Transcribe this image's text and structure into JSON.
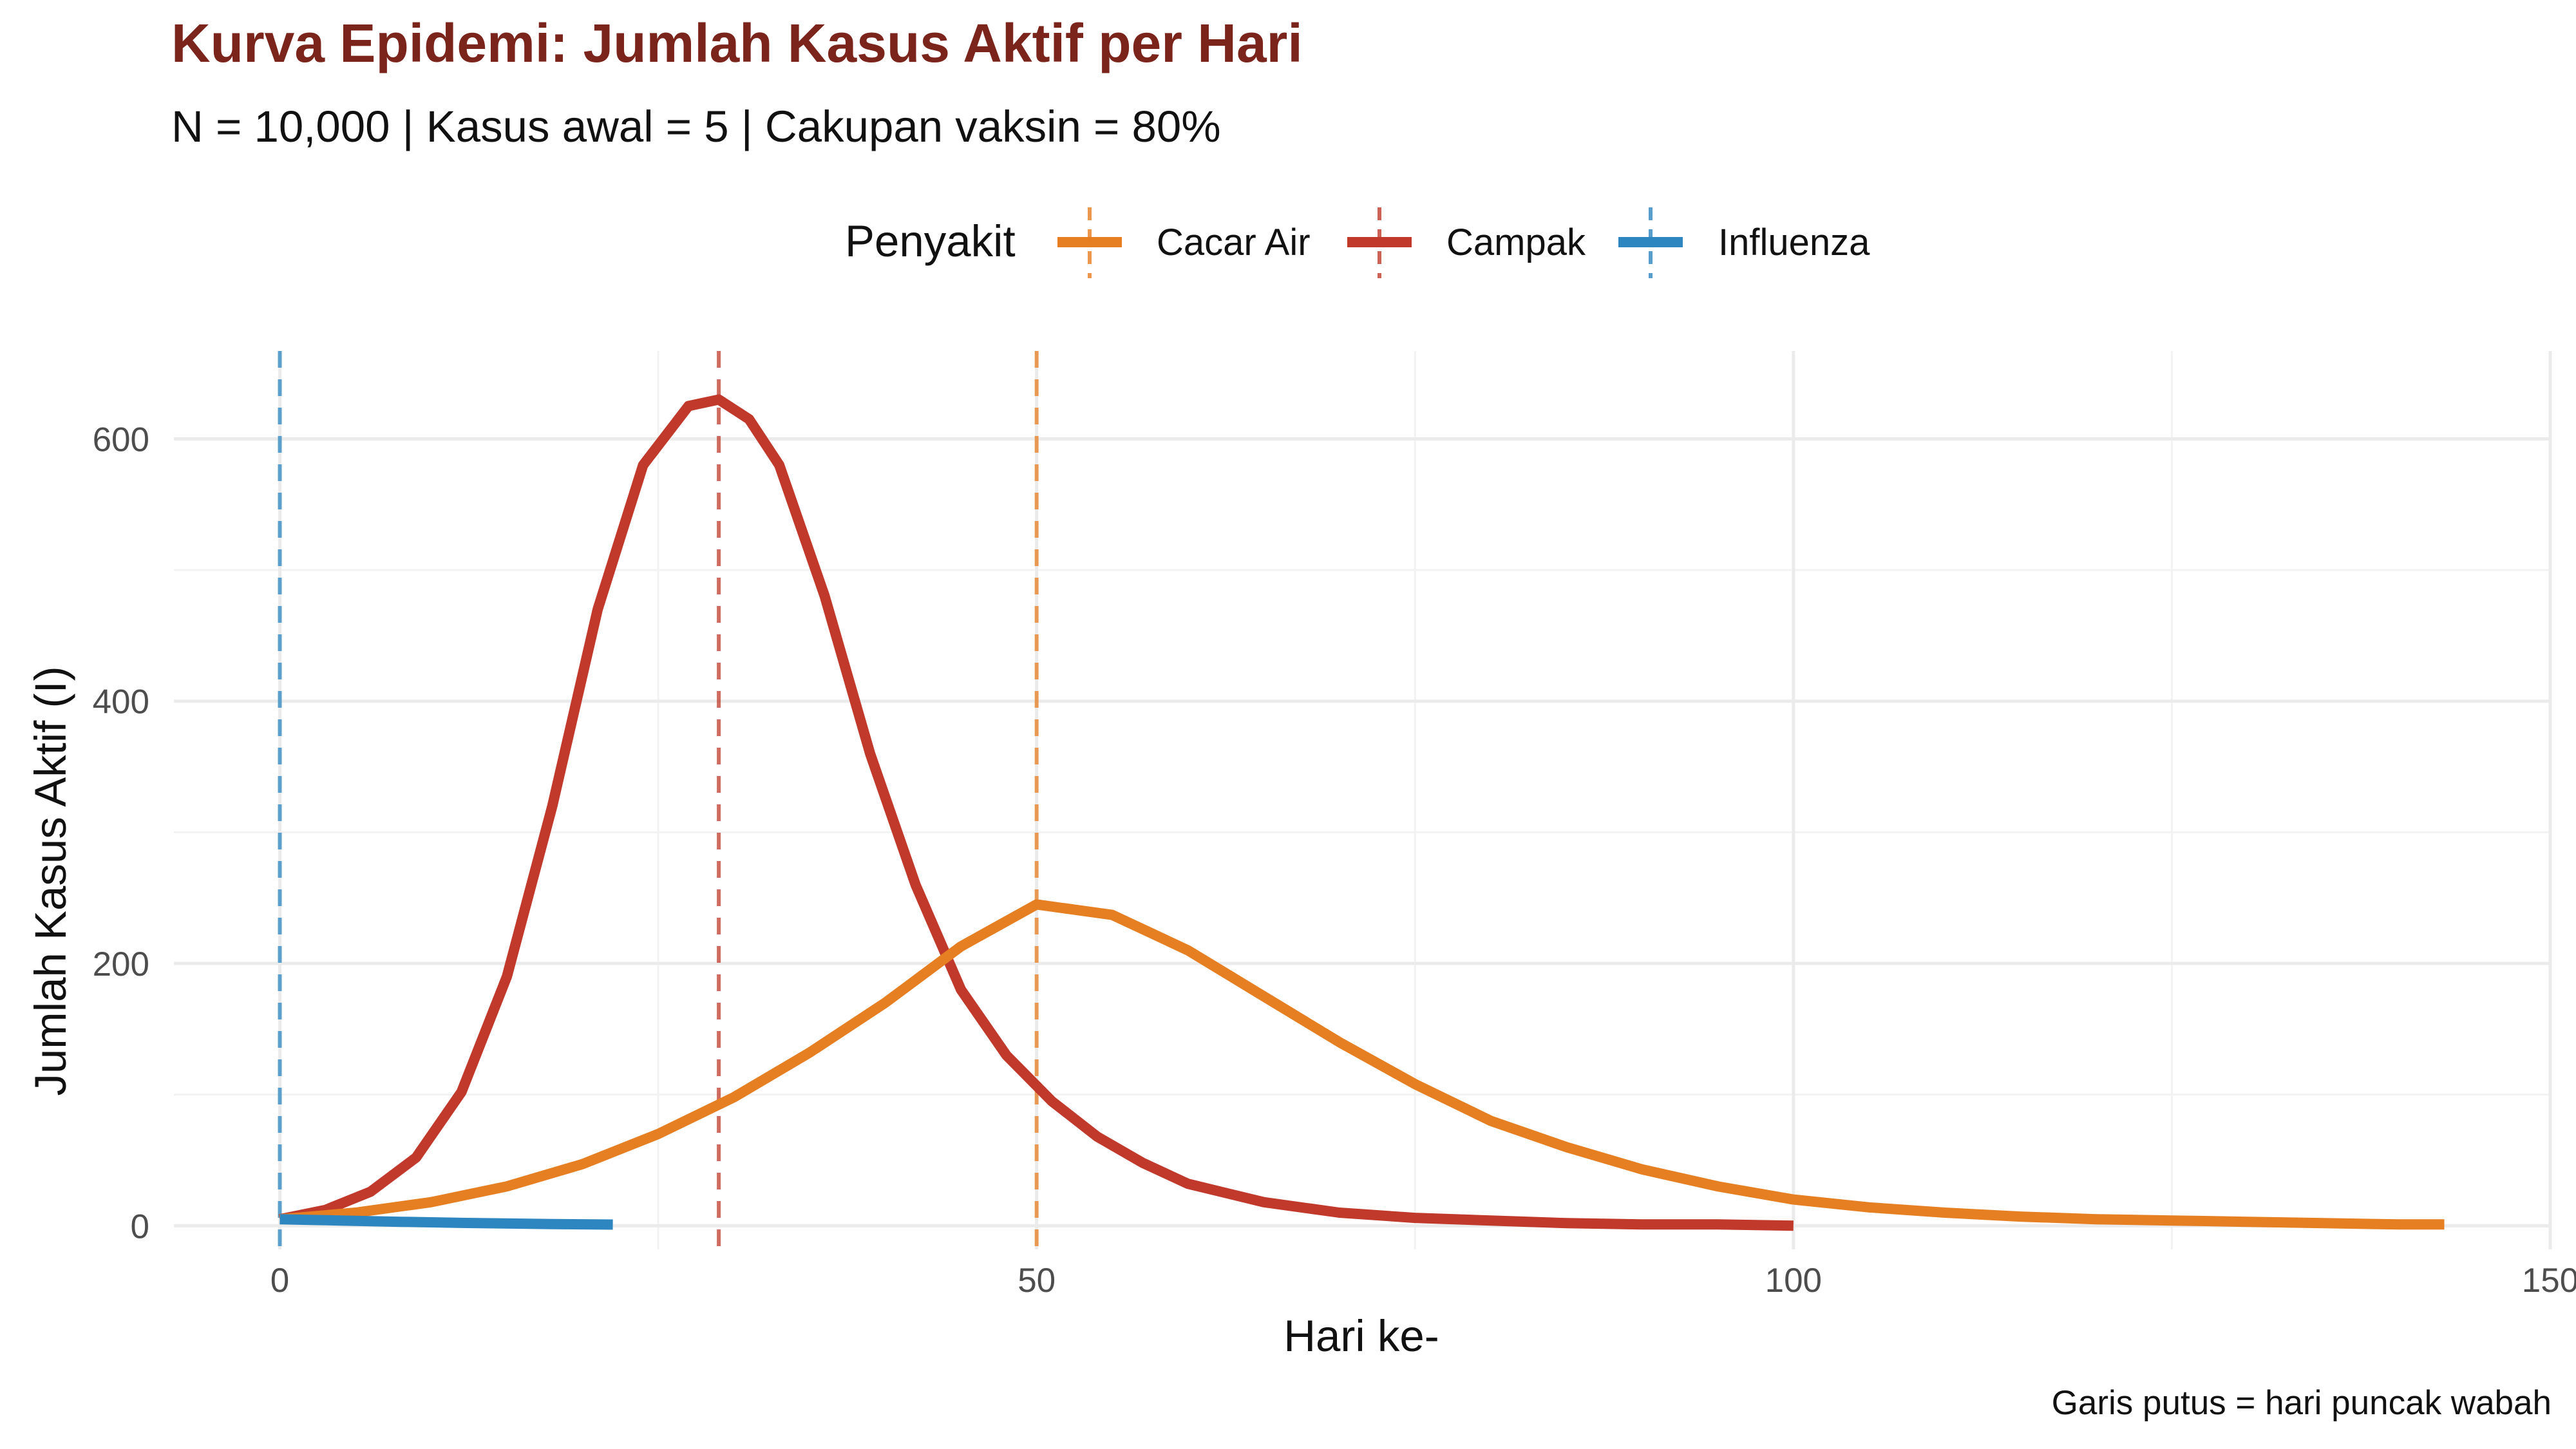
{
  "title": "Kurva Epidemi: Jumlah Kasus Aktif per Hari",
  "subtitle": "N = 10,000 | Kasus awal = 5 | Cakupan vaksin = 80%",
  "caption": "Garis putus = hari puncak wabah",
  "legend": {
    "title": "Penyakit",
    "placement": "top"
  },
  "chart_data": {
    "type": "line",
    "xlabel": "Hari ke-",
    "ylabel": "Jumlah Kasus Aktif (I)",
    "xlim": [
      -7,
      150
    ],
    "ylim": [
      -18,
      667
    ],
    "x_ticks": [
      0,
      50,
      100,
      150
    ],
    "y_ticks": [
      0,
      200,
      400,
      600
    ],
    "grid": true,
    "series": [
      {
        "name": "Cacar Air",
        "color": "#e67e22",
        "peak_day": 50,
        "x": [
          0,
          5,
          10,
          15,
          20,
          25,
          30,
          35,
          40,
          45,
          50,
          55,
          60,
          65,
          70,
          75,
          80,
          85,
          90,
          95,
          100,
          105,
          110,
          115,
          120,
          125,
          130,
          135,
          140,
          143
        ],
        "y": [
          5,
          10,
          18,
          30,
          47,
          70,
          98,
          132,
          170,
          213,
          245,
          237,
          210,
          175,
          140,
          108,
          80,
          60,
          43,
          30,
          20,
          14,
          10,
          7,
          5,
          4,
          3,
          2,
          1,
          1
        ]
      },
      {
        "name": "Campak",
        "color": "#c0392b",
        "peak_day": 29,
        "x": [
          0,
          3,
          6,
          9,
          12,
          15,
          18,
          21,
          24,
          27,
          29,
          31,
          33,
          36,
          39,
          42,
          45,
          48,
          51,
          54,
          57,
          60,
          65,
          70,
          75,
          80,
          85,
          90,
          95,
          100
        ],
        "y": [
          5,
          12,
          26,
          52,
          102,
          190,
          320,
          470,
          580,
          625,
          630,
          615,
          580,
          480,
          360,
          260,
          180,
          130,
          95,
          68,
          48,
          32,
          18,
          10,
          6,
          4,
          2,
          1,
          1,
          0
        ]
      },
      {
        "name": "Influenza",
        "color": "#2e86c1",
        "peak_day": 0,
        "x": [
          0,
          2,
          4,
          6,
          8,
          10,
          12,
          14,
          16,
          18,
          20,
          22
        ],
        "y": [
          5,
          4.5,
          4,
          3.5,
          3,
          2.6,
          2.2,
          1.9,
          1.6,
          1.3,
          1.1,
          0.9
        ]
      }
    ]
  }
}
